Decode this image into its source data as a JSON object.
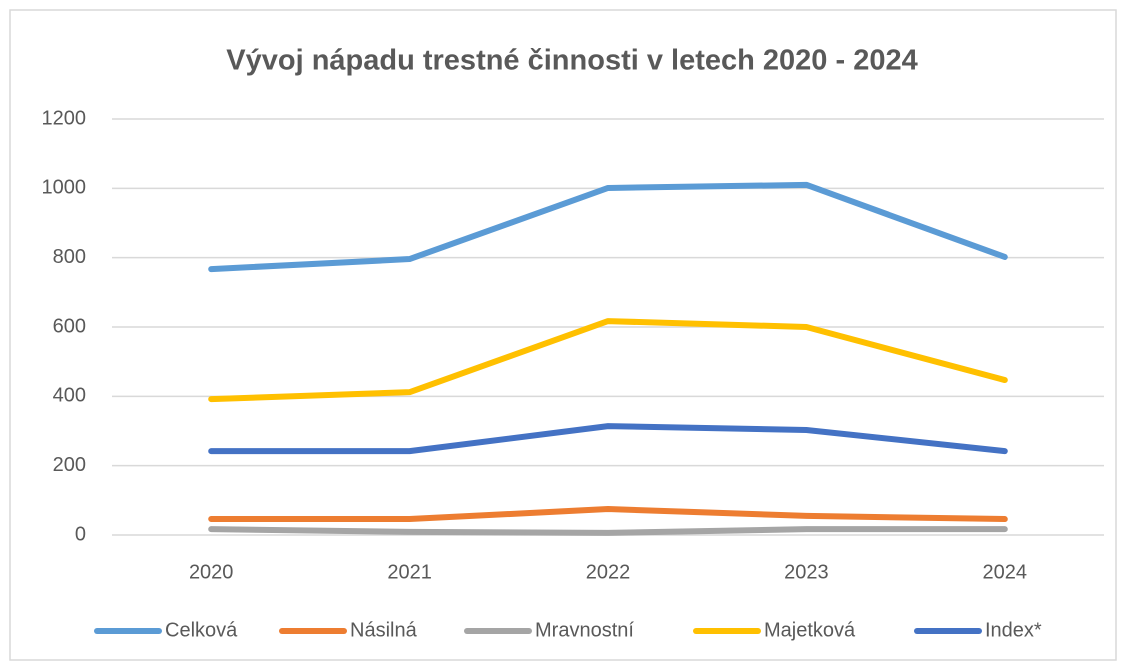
{
  "chart_data": {
    "type": "line",
    "title": "Vývoj nápadu trestné činnosti v letech 2020 - 2024",
    "categories": [
      "2020",
      "2021",
      "2022",
      "2023",
      "2024"
    ],
    "series": [
      {
        "name": "Celková",
        "color": "#5b9bd5",
        "values": [
          767,
          796,
          1001,
          1010,
          802
        ]
      },
      {
        "name": "Násilná",
        "color": "#ed7d31",
        "values": [
          46,
          46,
          75,
          55,
          46
        ]
      },
      {
        "name": "Mravnostní",
        "color": "#a5a5a5",
        "values": [
          17,
          9,
          6,
          17,
          17
        ]
      },
      {
        "name": "Majetková",
        "color": "#ffc000",
        "values": [
          392,
          412,
          617,
          600,
          447
        ]
      },
      {
        "name": "Index*",
        "color": "#4472c4",
        "values": [
          242,
          242,
          314,
          303,
          242
        ]
      }
    ],
    "ylim": [
      0,
      1200
    ],
    "yticks": [
      0,
      200,
      400,
      600,
      800,
      1000,
      1200
    ],
    "grid": true,
    "legend": "bottom"
  }
}
